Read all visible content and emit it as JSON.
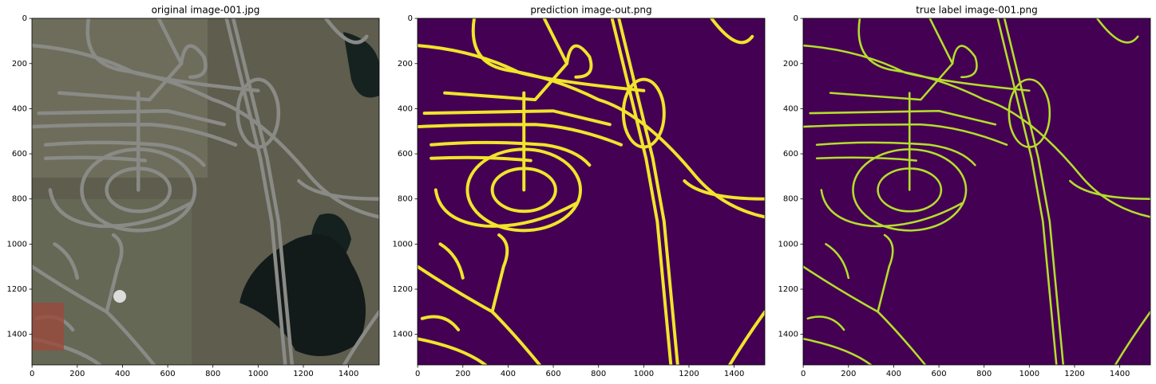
{
  "chart_data": [
    {
      "type": "image",
      "title": "original image-001.jpg",
      "xlim": [
        -0.5,
        1535.5
      ],
      "ylim": [
        1535.5,
        -0.5
      ],
      "xticks": [
        0,
        200,
        400,
        600,
        800,
        1000,
        1200,
        1400
      ],
      "yticks": [
        0,
        200,
        400,
        600,
        800,
        1000,
        1200,
        1400
      ]
    },
    {
      "type": "image",
      "title": "prediction image-out.png",
      "xlim": [
        -0.5,
        1535.5
      ],
      "ylim": [
        1535.5,
        -0.5
      ],
      "xticks": [
        0,
        200,
        400,
        600,
        800,
        1000,
        1200,
        1400
      ],
      "yticks": [
        0,
        200,
        400,
        600,
        800,
        1000,
        1200,
        1400
      ]
    },
    {
      "type": "image",
      "title": "true label image-001.png",
      "xlim": [
        -0.5,
        1535.5
      ],
      "ylim": [
        1535.5,
        -0.5
      ],
      "xticks": [
        0,
        200,
        400,
        600,
        800,
        1000,
        1200,
        1400
      ],
      "yticks": [
        0,
        200,
        400,
        600,
        800,
        1000,
        1200,
        1400
      ]
    }
  ]
}
